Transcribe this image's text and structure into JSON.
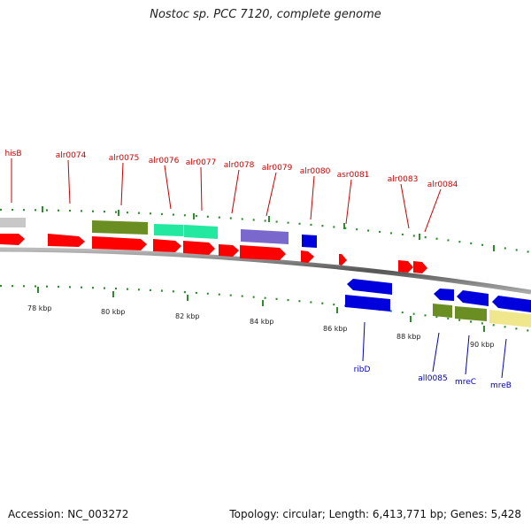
{
  "title": "Nostoc sp. PCC 7120, complete genome",
  "accession": "Accession: NC_003272",
  "summary": "Topology: circular; Length: 6,413,771 bp; Genes: 5,428",
  "scale_labels": [
    "78 kbp",
    "80 kbp",
    "82 kbp",
    "84 kbp",
    "86 kbp",
    "88 kbp",
    "90 kbp"
  ],
  "forward_labels": [
    "hisB",
    "alr0074",
    "alr0075",
    "alr0076",
    "alr0077",
    "alr0078",
    "alr0079",
    "alr0080",
    "asr0081",
    "alr0083",
    "alr0084"
  ],
  "reverse_labels": [
    "ribD",
    "all0085",
    "mreC",
    "mreB"
  ],
  "colors": {
    "forward_label": "#cc0000",
    "reverse_label": "#0000bb",
    "forward_gene": "#ff0000",
    "reverse_gene": "#0000dd",
    "tick": "#2e8b2e",
    "backbone": "#888888"
  }
}
